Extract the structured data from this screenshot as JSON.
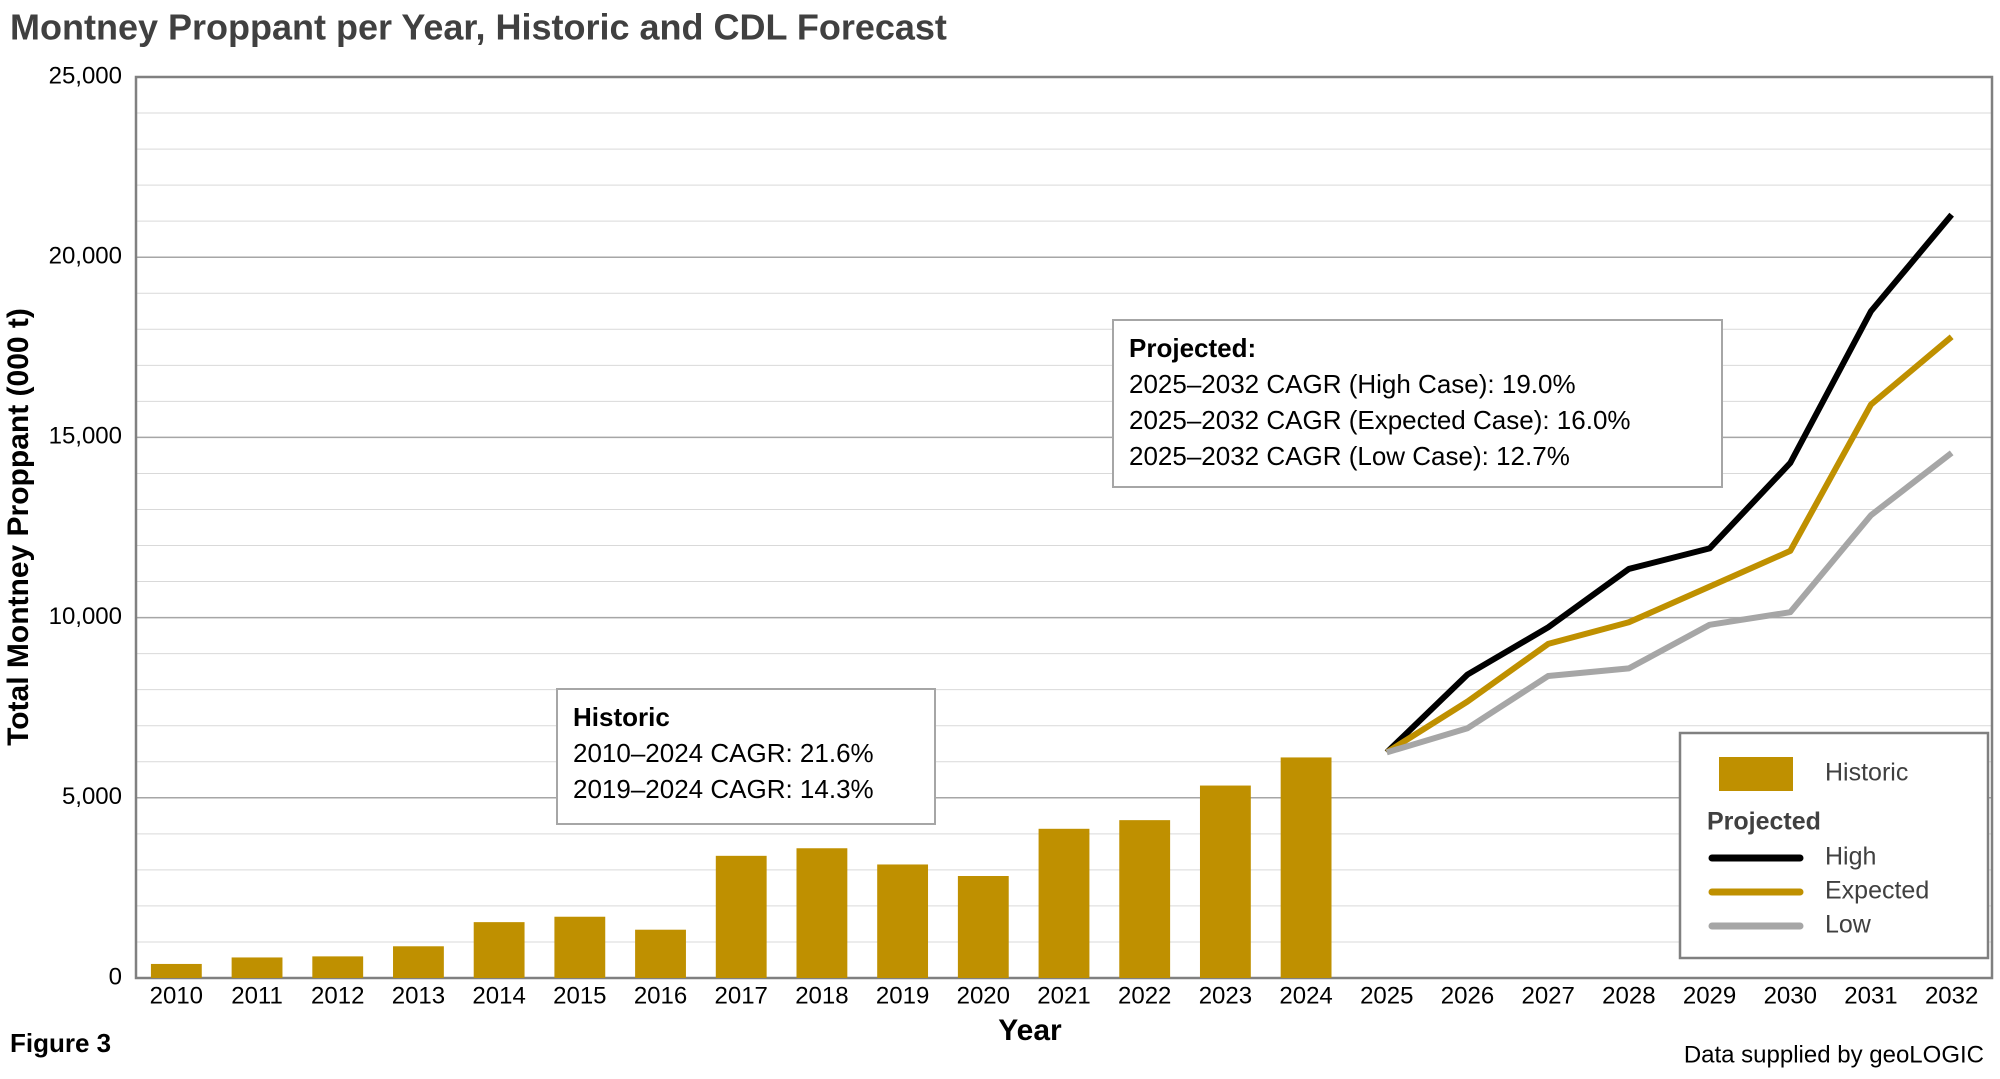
{
  "chart_data": {
    "type": "combo",
    "title": "Montney Proppant per Year, Historic and CDL Forecast",
    "x_label": "Year",
    "y_label": "Total Montney Proppant (000 t)",
    "categories": [
      "2010",
      "2011",
      "2012",
      "2013",
      "2014",
      "2015",
      "2016",
      "2017",
      "2018",
      "2019",
      "2020",
      "2021",
      "2022",
      "2023",
      "2024",
      "2025",
      "2026",
      "2027",
      "2028",
      "2029",
      "2030",
      "2031",
      "2032"
    ],
    "series": [
      {
        "name": "Historic",
        "type": "bar",
        "color": "#bf9000",
        "values": [
          390,
          570,
          600,
          880,
          1550,
          1700,
          1340,
          3390,
          3600,
          3150,
          2830,
          4140,
          4380,
          5340,
          6120,
          null,
          null,
          null,
          null,
          null,
          null,
          null,
          null
        ]
      },
      {
        "name": "High",
        "type": "line",
        "color": "#000000",
        "values": [
          null,
          null,
          null,
          null,
          null,
          null,
          null,
          null,
          null,
          null,
          null,
          null,
          null,
          null,
          null,
          6260,
          8420,
          9730,
          11350,
          11920,
          14290,
          18500,
          21180
        ]
      },
      {
        "name": "Expected",
        "type": "line",
        "color": "#bf9000",
        "values": [
          null,
          null,
          null,
          null,
          null,
          null,
          null,
          null,
          null,
          null,
          null,
          null,
          null,
          null,
          null,
          6260,
          7670,
          9270,
          9870,
          10860,
          11850,
          15910,
          17790
        ]
      },
      {
        "name": "Low",
        "type": "line",
        "color": "#a6a6a6",
        "values": [
          null,
          null,
          null,
          null,
          null,
          null,
          null,
          null,
          null,
          null,
          null,
          null,
          null,
          null,
          null,
          6260,
          6930,
          8380,
          8590,
          9800,
          10150,
          12840,
          14570
        ]
      }
    ],
    "ylim": [
      0,
      25000
    ],
    "yticks": [
      0,
      {
        "value": 5000,
        "label": "5,000"
      },
      {
        "value": 10000,
        "label": "10,000"
      },
      {
        "value": 15000,
        "label": "15,000"
      },
      {
        "value": 20000,
        "label": "20,000"
      },
      {
        "value": 25000,
        "label": "25,000"
      }
    ],
    "grid": true,
    "minor_grid_step": 1000,
    "legend_position": "lower right",
    "legend_group_title": "Projected",
    "annotations": [
      {
        "title": "Historic",
        "lines": [
          "2010–2024 CAGR: 21.6%",
          "2019–2024 CAGR: 14.3%"
        ]
      },
      {
        "title": "Projected:",
        "lines": [
          "2025–2032 CAGR (High Case): 19.0%",
          "2025–2032 CAGR (Expected Case): 16.0%",
          "2025–2032 CAGR (Low Case): 12.7%"
        ]
      }
    ],
    "figure_label": "Figure 3",
    "source": "Data supplied by geoLOGIC"
  }
}
